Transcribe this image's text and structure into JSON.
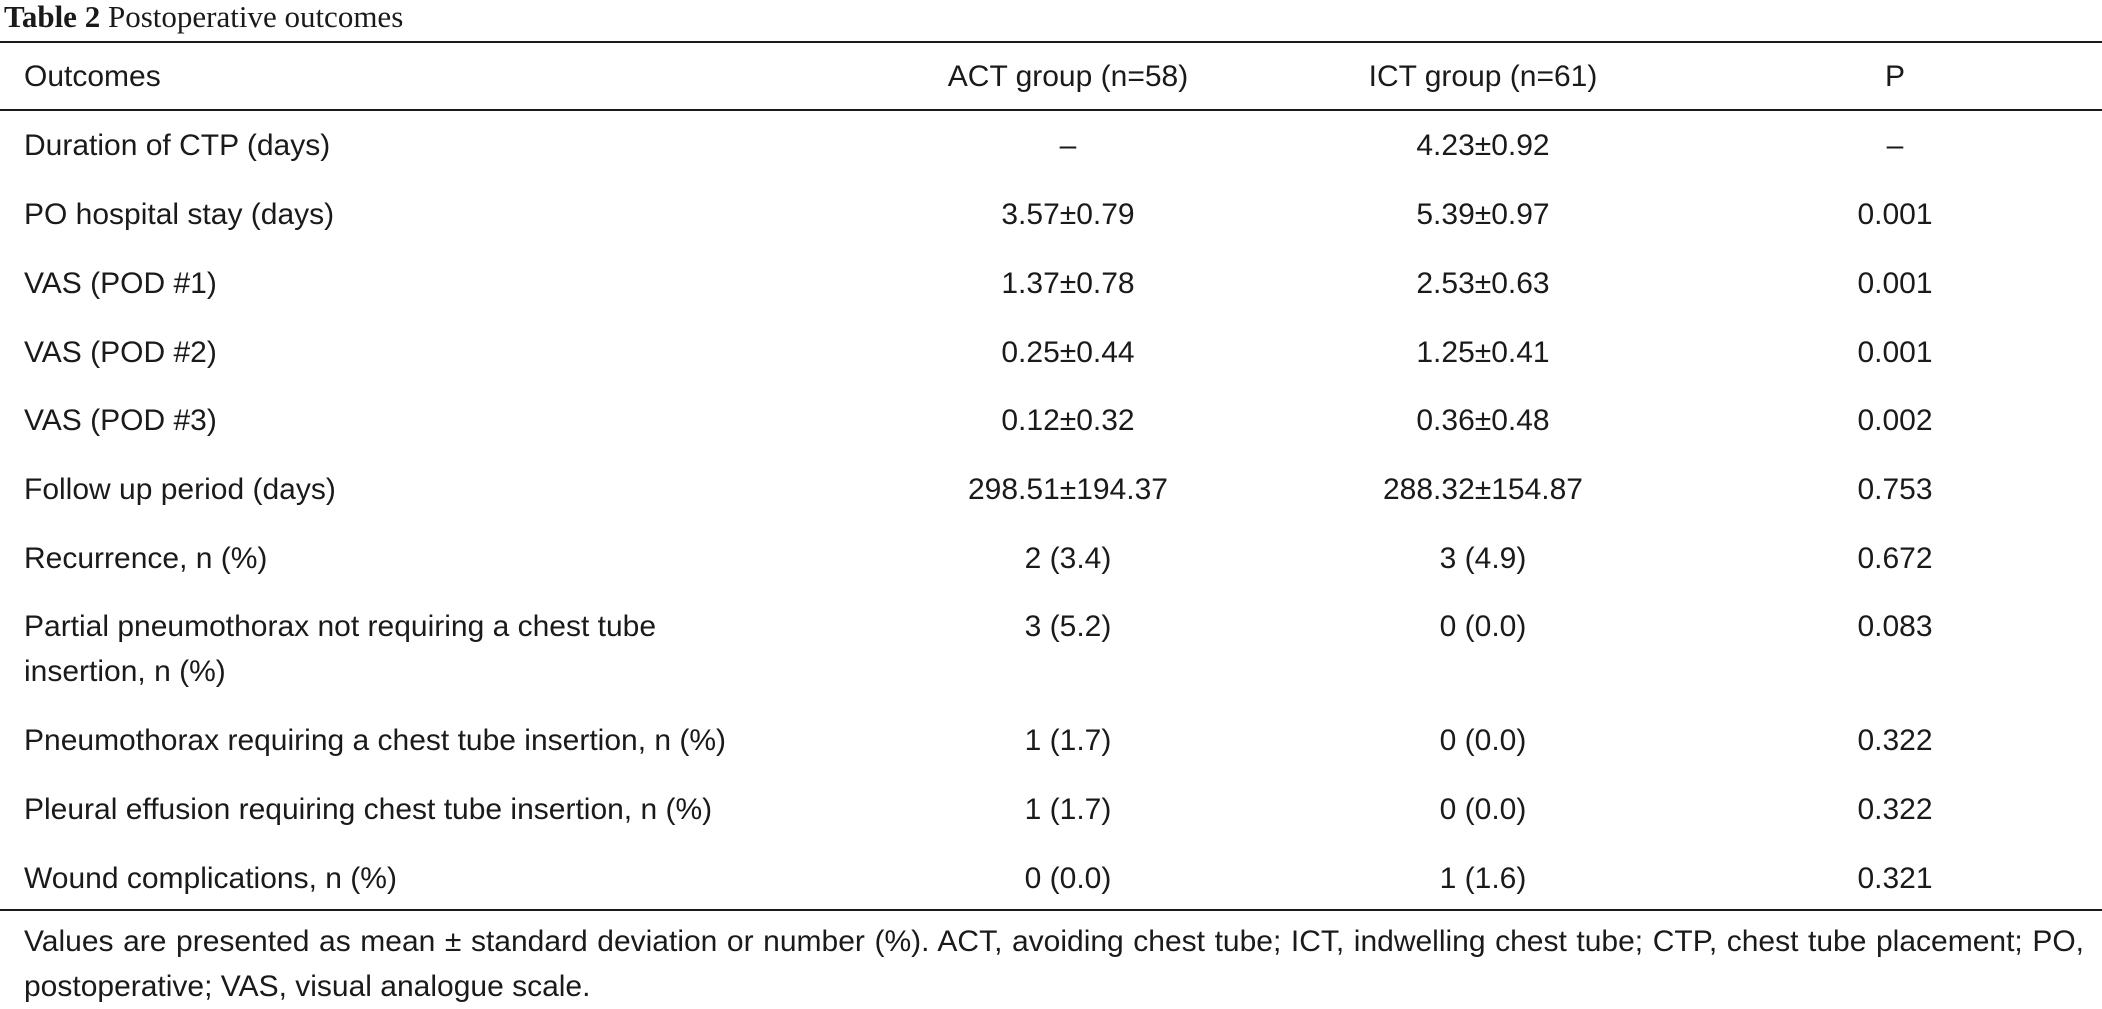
{
  "caption": {
    "label": "Table 2",
    "title": "Postoperative outcomes"
  },
  "table": {
    "headers": {
      "outcome": "Outcomes",
      "act": "ACT group (n=58)",
      "ict": "ICT group (n=61)",
      "p": "P"
    },
    "rows": [
      {
        "outcome": "Duration of CTP (days)",
        "act": "–",
        "ict": "4.23±0.92",
        "p": "–"
      },
      {
        "outcome": "PO hospital stay (days)",
        "act": "3.57±0.79",
        "ict": "5.39±0.97",
        "p": "0.001"
      },
      {
        "outcome": "VAS (POD #1)",
        "act": "1.37±0.78",
        "ict": "2.53±0.63",
        "p": "0.001"
      },
      {
        "outcome": "VAS (POD #2)",
        "act": "0.25±0.44",
        "ict": "1.25±0.41",
        "p": "0.001"
      },
      {
        "outcome": "VAS (POD #3)",
        "act": "0.12±0.32",
        "ict": "0.36±0.48",
        "p": "0.002"
      },
      {
        "outcome": "Follow up period (days)",
        "act": "298.51±194.37",
        "ict": "288.32±154.87",
        "p": "0.753"
      },
      {
        "outcome": "Recurrence, n (%)",
        "act": "2 (3.4)",
        "ict": "3 (4.9)",
        "p": "0.672"
      },
      {
        "outcome_line1": "Partial pneumothorax not requiring a chest tube",
        "outcome_line2": "insertion, n (%)",
        "act": "3 (5.2)",
        "ict": "0 (0.0)",
        "p": "0.083"
      },
      {
        "outcome": "Pneumothorax requiring a chest tube insertion, n (%)",
        "act": "1 (1.7)",
        "ict": "0 (0.0)",
        "p": "0.322"
      },
      {
        "outcome": "Pleural effusion requiring chest tube insertion, n (%)",
        "act": "1 (1.7)",
        "ict": "0 (0.0)",
        "p": "0.322"
      },
      {
        "outcome": "Wound complications, n (%)",
        "act": "0 (0.0)",
        "ict": "1 (1.6)",
        "p": "0.321"
      }
    ]
  },
  "footnote": "Values are presented as mean ± standard deviation or number (%). ACT, avoiding chest tube; ICT, indwelling chest tube; CTP, chest tube placement; PO, postoperative; VAS, visual analogue scale."
}
